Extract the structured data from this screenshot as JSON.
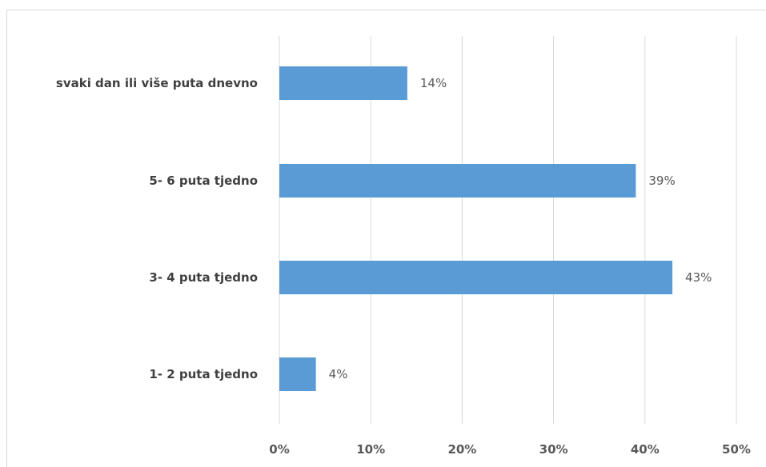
{
  "chart_data": {
    "type": "bar",
    "orientation": "horizontal",
    "categories": [
      "svaki dan ili više puta dnevno",
      "5- 6 puta tjedno",
      "3- 4 puta tjedno",
      "1- 2 puta tjedno"
    ],
    "values": [
      14,
      39,
      43,
      4
    ],
    "data_labels": [
      "14%",
      "39%",
      "43%",
      "4%"
    ],
    "x_ticks": [
      "0%",
      "10%",
      "20%",
      "30%",
      "40%",
      "50%"
    ],
    "xlim": [
      0,
      50
    ],
    "grid": true,
    "legend": "none",
    "bar_color": "#5b9bd5",
    "grid_color": "#d9d9d9"
  }
}
